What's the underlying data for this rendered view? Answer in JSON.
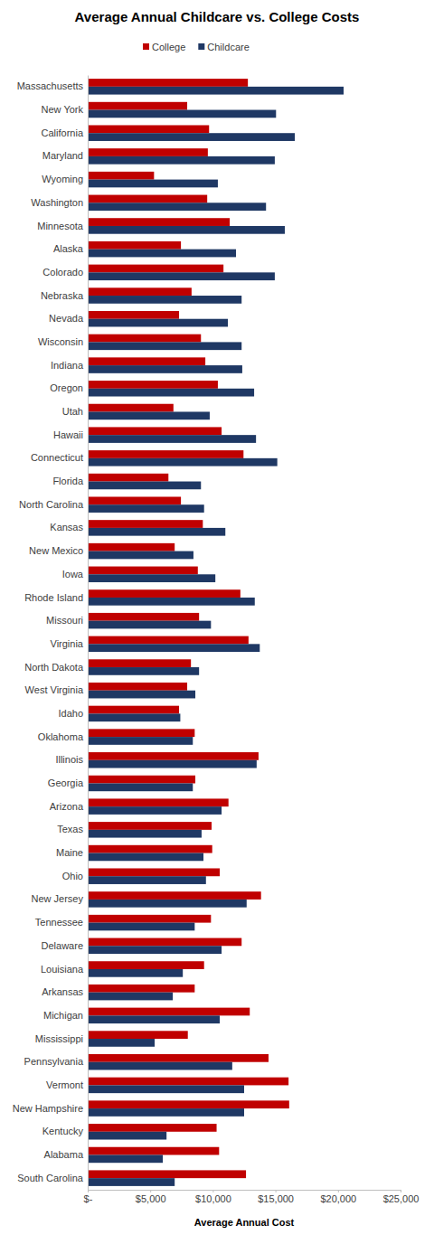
{
  "chart_data": {
    "type": "bar",
    "orientation": "horizontal",
    "title": "Average Annual Childcare vs. College Costs",
    "xlabel": "Average Annual Cost",
    "legend": "top",
    "grid": false,
    "categories": [
      "Massachusetts",
      "New York",
      "California",
      "Maryland",
      "Wyoming",
      "Washington",
      "Minnesota",
      "Alaska",
      "Colorado",
      "Nebraska",
      "Nevada",
      "Wisconsin",
      "Indiana",
      "Oregon",
      "Utah",
      "Hawaii",
      "Connecticut",
      "Florida",
      "North Carolina",
      "Kansas",
      "New Mexico",
      "Iowa",
      "Rhode Island",
      "Missouri",
      "Virginia",
      "North Dakota",
      "West Virginia",
      "Idaho",
      "Oklahoma",
      "Illinois",
      "Georgia",
      "Arizona",
      "Texas",
      "Maine",
      "Ohio",
      "New Jersey",
      "Tennessee",
      "Delaware",
      "Louisiana",
      "Arkansas",
      "Michigan",
      "Mississippi",
      "Pennsylvania",
      "Vermont",
      "New Hampshire",
      "Kentucky",
      "Alabama",
      "South Carolina"
    ],
    "series": [
      {
        "name": "College",
        "color": "#c00000",
        "values": [
          12800,
          7950,
          9700,
          9600,
          5300,
          9550,
          11350,
          7450,
          10850,
          8300,
          7300,
          9050,
          9400,
          10400,
          6850,
          10700,
          12450,
          6450,
          7450,
          9200,
          6950,
          8800,
          12200,
          8900,
          12850,
          8250,
          7950,
          7300,
          8550,
          13650,
          8600,
          11250,
          9900,
          9950,
          10550,
          13850,
          9850,
          12300,
          9300,
          8550,
          12950,
          8000,
          14450,
          16050,
          16100,
          10300,
          10500,
          12650
        ]
      },
      {
        "name": "Childcare",
        "color": "#1f3864",
        "values": [
          20450,
          15050,
          16550,
          14950,
          10400,
          14250,
          15750,
          11850,
          14950,
          12300,
          11200,
          12300,
          12350,
          13300,
          9750,
          13450,
          15150,
          9050,
          9300,
          11000,
          8450,
          10200,
          13350,
          9850,
          13750,
          8900,
          8600,
          7400,
          8400,
          13500,
          8400,
          10700,
          9100,
          9250,
          9450,
          12700,
          8550,
          10700,
          7600,
          6800,
          10550,
          5350,
          11550,
          12500,
          12500,
          6300,
          6000,
          6950
        ]
      }
    ],
    "xlim": [
      0,
      25000
    ],
    "xticks": [
      {
        "value": 0,
        "label": "$-"
      },
      {
        "value": 5000,
        "label": "$5,000"
      },
      {
        "value": 10000,
        "label": "$10,000"
      },
      {
        "value": 15000,
        "label": "$15,000"
      },
      {
        "value": 20000,
        "label": "$20,000"
      },
      {
        "value": 25000,
        "label": "$25,000"
      }
    ]
  }
}
